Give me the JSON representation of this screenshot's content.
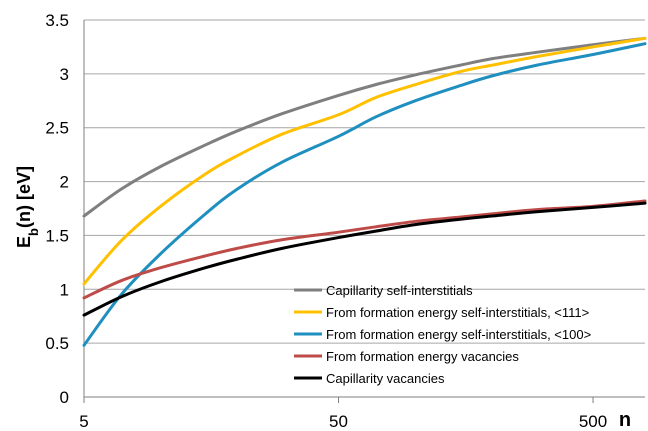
{
  "chart_data": {
    "type": "line",
    "title": "",
    "xlabel": "n",
    "ylabel": "E",
    "ylabel_sub": "b",
    "ylabel_rest": "(n) [eV]",
    "xscale": "log",
    "xlim": [
      5,
      800
    ],
    "ylim": [
      0,
      3.5
    ],
    "x_ticks": [
      5,
      50,
      500
    ],
    "x_tick_labels": [
      "5",
      "50",
      "500"
    ],
    "y_ticks": [
      0,
      0.5,
      1,
      1.5,
      2,
      2.5,
      3,
      3.5
    ],
    "y_tick_labels": [
      "0",
      "0.5",
      "1",
      "1.5",
      "2",
      "2.5",
      "3",
      "3.5"
    ],
    "grid": "horizontal",
    "legend_position": "bottom-right",
    "x": [
      5,
      7,
      10,
      15,
      20,
      30,
      50,
      70,
      100,
      150,
      200,
      300,
      500,
      800
    ],
    "series": [
      {
        "name": "Capillarity self-interstitials",
        "color": "#7f7f7f",
        "values": [
          1.68,
          1.93,
          2.14,
          2.34,
          2.47,
          2.63,
          2.8,
          2.9,
          2.99,
          3.08,
          3.14,
          3.2,
          3.27,
          3.33
        ]
      },
      {
        "name": "From formation energy self-interstitials, <111>",
        "color": "#ffc000",
        "values": [
          1.05,
          1.45,
          1.77,
          2.07,
          2.24,
          2.44,
          2.62,
          2.78,
          2.9,
          3.02,
          3.08,
          3.16,
          3.25,
          3.33
        ]
      },
      {
        "name": "From formation energy self-interstitials, <100>",
        "color": "#1f8fc0",
        "values": [
          0.48,
          0.95,
          1.33,
          1.7,
          1.93,
          2.18,
          2.42,
          2.6,
          2.75,
          2.89,
          2.98,
          3.08,
          3.18,
          3.28
        ]
      },
      {
        "name": "From formation energy vacancies",
        "color": "#be4b48",
        "values": [
          0.92,
          1.08,
          1.2,
          1.31,
          1.38,
          1.46,
          1.53,
          1.58,
          1.63,
          1.67,
          1.7,
          1.74,
          1.77,
          1.82
        ]
      },
      {
        "name": "Capillarity vacancies",
        "color": "#000000",
        "values": [
          0.76,
          0.93,
          1.07,
          1.2,
          1.28,
          1.38,
          1.48,
          1.54,
          1.6,
          1.65,
          1.68,
          1.72,
          1.76,
          1.8
        ]
      }
    ]
  }
}
